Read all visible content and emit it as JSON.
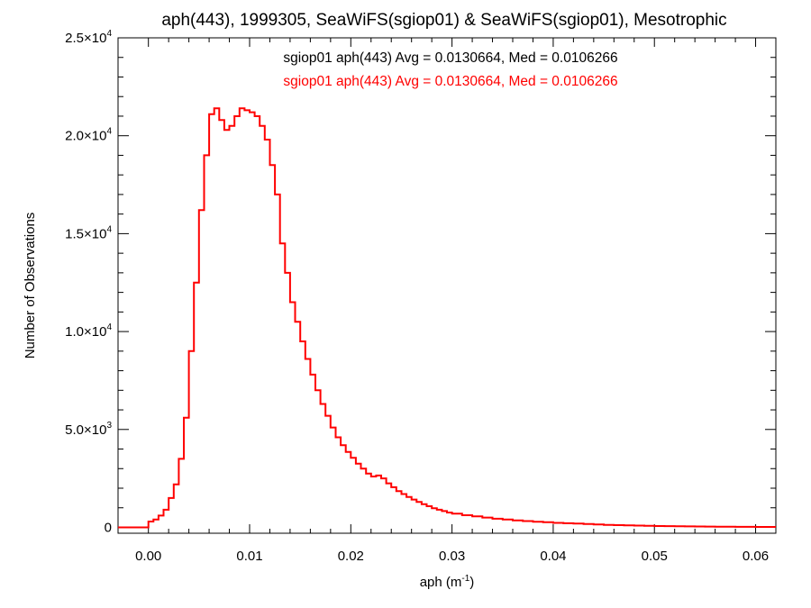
{
  "chart_data": {
    "type": "histogram",
    "title": "aph(443), 1999305, SeaWiFS(sgiop01) & SeaWiFS(sgiop01), Mesotrophic",
    "xlabel": {
      "base": "aph (m",
      "sup": "-1",
      "close": ")"
    },
    "ylabel": "Number of Observations",
    "xlim": [
      -0.003,
      0.062
    ],
    "ylim": [
      -300,
      25000
    ],
    "grid": false,
    "x_ticks": [
      {
        "value": 0.0,
        "label": "0.00"
      },
      {
        "value": 0.01,
        "label": "0.01"
      },
      {
        "value": 0.02,
        "label": "0.02"
      },
      {
        "value": 0.03,
        "label": "0.03"
      },
      {
        "value": 0.04,
        "label": "0.04"
      },
      {
        "value": 0.05,
        "label": "0.05"
      },
      {
        "value": 0.06,
        "label": "0.06"
      }
    ],
    "y_ticks": [
      {
        "value": 0,
        "mantissa": "0",
        "exp": ""
      },
      {
        "value": 5000,
        "mantissa": "5.0×10",
        "exp": "3"
      },
      {
        "value": 10000,
        "mantissa": "1.0×10",
        "exp": "4"
      },
      {
        "value": 15000,
        "mantissa": "1.5×10",
        "exp": "4"
      },
      {
        "value": 20000,
        "mantissa": "2.0×10",
        "exp": "4"
      },
      {
        "value": 25000,
        "mantissa": "2.5×10",
        "exp": "4"
      }
    ],
    "legend": [
      {
        "text": "sgiop01 aph(443) Avg = 0.0130664, Med = 0.0106266",
        "color": "#000000"
      },
      {
        "text": "sgiop01 aph(443) Avg = 0.0130664, Med = 0.0106266",
        "color": "#ff0000"
      }
    ],
    "legend_placement": "top-center",
    "series": [
      {
        "color": "#ff0000",
        "points": [
          [
            -0.003,
            0
          ],
          [
            -0.0025,
            0
          ],
          [
            -0.002,
            0
          ],
          [
            -0.0015,
            0
          ],
          [
            -0.001,
            0
          ],
          [
            -0.0005,
            0
          ],
          [
            0.0,
            300
          ],
          [
            0.0005,
            400
          ],
          [
            0.001,
            600
          ],
          [
            0.0015,
            900
          ],
          [
            0.002,
            1500
          ],
          [
            0.0025,
            2200
          ],
          [
            0.003,
            3500
          ],
          [
            0.0035,
            5600
          ],
          [
            0.004,
            9000
          ],
          [
            0.0045,
            12500
          ],
          [
            0.005,
            16200
          ],
          [
            0.0055,
            19000
          ],
          [
            0.006,
            21100
          ],
          [
            0.0065,
            21400
          ],
          [
            0.007,
            20800
          ],
          [
            0.0075,
            20300
          ],
          [
            0.008,
            20500
          ],
          [
            0.0085,
            21000
          ],
          [
            0.009,
            21400
          ],
          [
            0.0095,
            21300
          ],
          [
            0.01,
            21200
          ],
          [
            0.0105,
            21000
          ],
          [
            0.011,
            20500
          ],
          [
            0.0115,
            19800
          ],
          [
            0.012,
            18500
          ],
          [
            0.0125,
            17000
          ],
          [
            0.013,
            14500
          ],
          [
            0.0135,
            13000
          ],
          [
            0.014,
            11500
          ],
          [
            0.0145,
            10500
          ],
          [
            0.015,
            9500
          ],
          [
            0.0155,
            8600
          ],
          [
            0.016,
            7800
          ],
          [
            0.0165,
            7000
          ],
          [
            0.017,
            6300
          ],
          [
            0.0175,
            5700
          ],
          [
            0.018,
            5100
          ],
          [
            0.0185,
            4600
          ],
          [
            0.019,
            4200
          ],
          [
            0.0195,
            3850
          ],
          [
            0.02,
            3550
          ],
          [
            0.0205,
            3250
          ],
          [
            0.021,
            3000
          ],
          [
            0.0215,
            2750
          ],
          [
            0.022,
            2600
          ],
          [
            0.0225,
            2650
          ],
          [
            0.023,
            2500
          ],
          [
            0.0235,
            2250
          ],
          [
            0.024,
            2050
          ],
          [
            0.0245,
            1850
          ],
          [
            0.025,
            1700
          ],
          [
            0.0255,
            1550
          ],
          [
            0.026,
            1420
          ],
          [
            0.0265,
            1300
          ],
          [
            0.027,
            1180
          ],
          [
            0.0275,
            1080
          ],
          [
            0.028,
            980
          ],
          [
            0.0285,
            900
          ],
          [
            0.029,
            830
          ],
          [
            0.0295,
            760
          ],
          [
            0.03,
            700
          ],
          [
            0.031,
            620
          ],
          [
            0.032,
            560
          ],
          [
            0.033,
            500
          ],
          [
            0.034,
            440
          ],
          [
            0.035,
            400
          ],
          [
            0.036,
            360
          ],
          [
            0.037,
            320
          ],
          [
            0.038,
            290
          ],
          [
            0.039,
            260
          ],
          [
            0.04,
            230
          ],
          [
            0.041,
            210
          ],
          [
            0.042,
            190
          ],
          [
            0.043,
            170
          ],
          [
            0.044,
            150
          ],
          [
            0.045,
            130
          ],
          [
            0.046,
            115
          ],
          [
            0.047,
            100
          ],
          [
            0.048,
            90
          ],
          [
            0.049,
            80
          ],
          [
            0.05,
            70
          ],
          [
            0.051,
            62
          ],
          [
            0.052,
            55
          ],
          [
            0.053,
            50
          ],
          [
            0.054,
            45
          ],
          [
            0.055,
            40
          ],
          [
            0.056,
            36
          ],
          [
            0.057,
            32
          ],
          [
            0.058,
            28
          ],
          [
            0.059,
            25
          ],
          [
            0.06,
            22
          ],
          [
            0.061,
            20
          ]
        ]
      }
    ]
  }
}
